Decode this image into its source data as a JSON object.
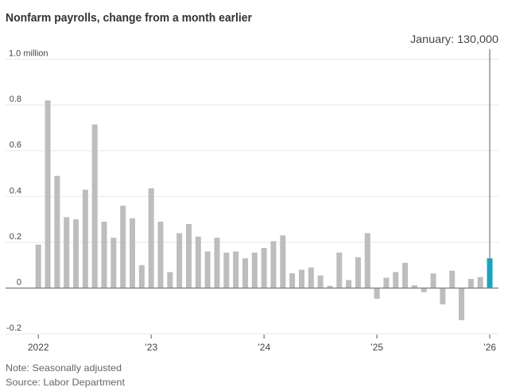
{
  "chart_data": {
    "type": "bar",
    "title": "Nonfarm payrolls, change from a month earlier",
    "xlabel": "",
    "ylabel": "",
    "unit": "million",
    "ylim": [
      -0.2,
      1.0
    ],
    "grid": true,
    "y_ticks": [
      {
        "value": 1.0,
        "label": "1.0 million"
      },
      {
        "value": 0.8,
        "label": "0.8"
      },
      {
        "value": 0.6,
        "label": "0.6"
      },
      {
        "value": 0.4,
        "label": "0.4"
      },
      {
        "value": 0.2,
        "label": "0.2"
      },
      {
        "value": 0,
        "label": "0"
      },
      {
        "value": -0.2,
        "label": "-0.2"
      }
    ],
    "x_ticks": [
      {
        "index": 0,
        "label": "2022"
      },
      {
        "index": 12,
        "label": "’23"
      },
      {
        "index": 24,
        "label": "’24"
      },
      {
        "index": 36,
        "label": "’25"
      },
      {
        "index": 48,
        "label": "’26"
      }
    ],
    "categories": [
      "Jan 2022",
      "Feb 2022",
      "Mar 2022",
      "Apr 2022",
      "May 2022",
      "Jun 2022",
      "Jul 2022",
      "Aug 2022",
      "Sep 2022",
      "Oct 2022",
      "Nov 2022",
      "Dec 2022",
      "Jan 2023",
      "Feb 2023",
      "Mar 2023",
      "Apr 2023",
      "May 2023",
      "Jun 2023",
      "Jul 2023",
      "Aug 2023",
      "Sep 2023",
      "Oct 2023",
      "Nov 2023",
      "Dec 2023",
      "Jan 2024",
      "Feb 2024",
      "Mar 2024",
      "Apr 2024",
      "May 2024",
      "Jun 2024",
      "Jul 2024",
      "Aug 2024",
      "Sep 2024",
      "Oct 2024",
      "Nov 2024",
      "Dec 2024",
      "Jan 2025",
      "Feb 2025",
      "Mar 2025",
      "Apr 2025",
      "May 2025",
      "Jun 2025",
      "Jul 2025",
      "Aug 2025",
      "Sep 2025",
      "Oct 2025",
      "Nov 2025",
      "Dec 2025",
      "Jan 2026"
    ],
    "values": [
      0.19,
      0.82,
      0.49,
      0.31,
      0.3,
      0.43,
      0.715,
      0.29,
      0.22,
      0.36,
      0.305,
      0.1,
      0.436,
      0.29,
      0.07,
      0.24,
      0.28,
      0.225,
      0.16,
      0.22,
      0.155,
      0.16,
      0.13,
      0.155,
      0.175,
      0.205,
      0.23,
      0.065,
      0.08,
      0.09,
      0.055,
      0.01,
      0.155,
      0.035,
      0.135,
      0.24,
      -0.047,
      0.045,
      0.07,
      0.11,
      0.012,
      -0.018,
      0.064,
      -0.071,
      0.076,
      -0.14,
      0.04,
      0.048,
      0.13
    ],
    "highlight_index": 48,
    "annotation": {
      "index": 48,
      "text": "January: 130,000"
    },
    "note": "Note: Seasonally adjusted",
    "source": "Source: Labor Department",
    "colors": {
      "bar": "#bdbdbd",
      "highlight": "#1aa3c0",
      "grid": "#ececec",
      "baseline": "#8a8a8a",
      "annotation_line": "#777777"
    }
  }
}
